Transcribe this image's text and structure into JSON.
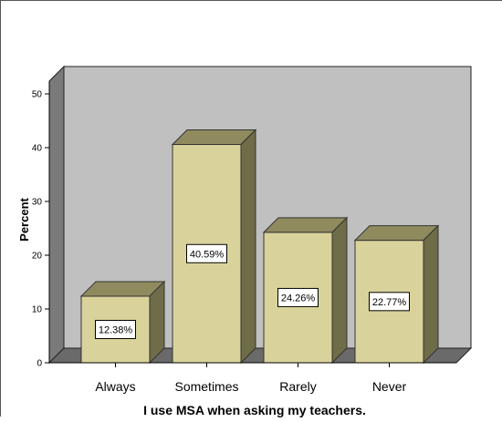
{
  "chart_data": {
    "type": "bar",
    "xlabel": "I use MSA when asking my teachers.",
    "ylabel": "Percent",
    "ylim": [
      0,
      50
    ],
    "yticks": [
      0,
      10,
      20,
      30,
      40,
      50
    ],
    "categories": [
      "Always",
      "Sometimes",
      "Rarely",
      "Never"
    ],
    "values": [
      12.38,
      40.59,
      24.26,
      22.77
    ],
    "value_labels": [
      "12.38%",
      "40.59%",
      "24.26%",
      "22.77%"
    ],
    "style": "3d",
    "grid": false,
    "colors": {
      "bar_front": "#d9d39b",
      "bar_top": "#8f8b5e",
      "bar_side": "#6f6c48",
      "plot_back": "#c0c0c0",
      "plot_floor": "#6a6a6a",
      "plot_left_wall": "#7a7a7a"
    }
  }
}
